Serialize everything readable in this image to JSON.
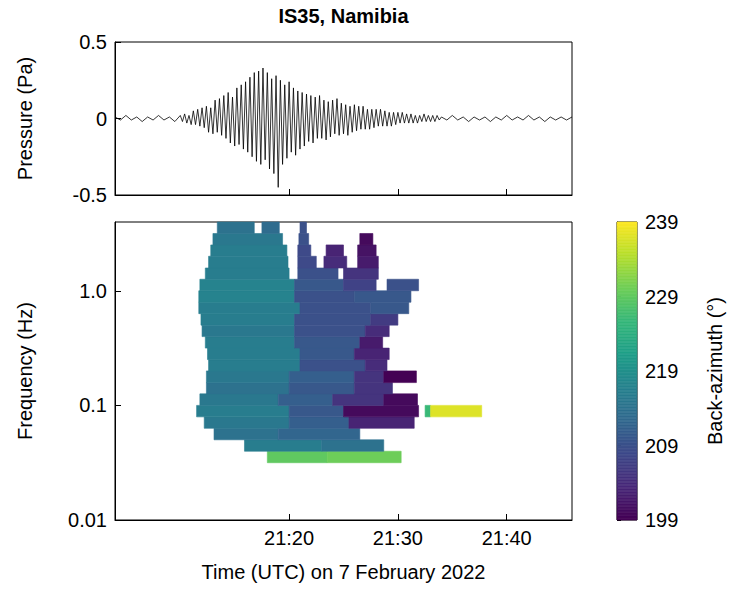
{
  "chart_data": [
    {
      "type": "line",
      "title": "IS35, Namibia",
      "ylabel": "Pressure (Pa)",
      "x": [
        4,
        4.5,
        5,
        5.5,
        6,
        6.5,
        7,
        7.5,
        8,
        8.5,
        9,
        9.5,
        10,
        10.2,
        10.4,
        10.6,
        10.8,
        11,
        11.2,
        11.4,
        11.6,
        11.8,
        12,
        12.2,
        12.4,
        12.6,
        12.8,
        13,
        13.2,
        13.4,
        13.6,
        13.8,
        14,
        14.2,
        14.4,
        14.6,
        14.8,
        15,
        15.2,
        15.4,
        15.6,
        15.8,
        16,
        16.2,
        16.4,
        16.6,
        16.8,
        17,
        17.2,
        17.4,
        17.6,
        17.8,
        18,
        18.2,
        18.4,
        18.6,
        18.8,
        19,
        19.2,
        19.4,
        19.6,
        19.8,
        20,
        20.2,
        20.4,
        20.6,
        20.8,
        21,
        21.2,
        21.4,
        21.6,
        21.8,
        22,
        22.2,
        22.4,
        22.6,
        22.8,
        23,
        23.2,
        23.4,
        23.6,
        23.8,
        24,
        24.2,
        24.4,
        24.6,
        24.8,
        25,
        25.2,
        25.4,
        25.6,
        25.8,
        26,
        26.2,
        26.4,
        26.6,
        26.8,
        27,
        27.2,
        27.4,
        27.6,
        27.8,
        28,
        28.2,
        28.4,
        28.6,
        28.8,
        29,
        29.2,
        29.4,
        29.6,
        29.8,
        30,
        30.2,
        30.4,
        30.6,
        30.8,
        31,
        31.2,
        31.4,
        31.6,
        31.8,
        32,
        32.2,
        32.4,
        32.6,
        32.8,
        33,
        33.2,
        33.4,
        33.6,
        33.8,
        34,
        34.5,
        35,
        35.5,
        36,
        36.5,
        37,
        37.5,
        38,
        38.5,
        39,
        39.5,
        40,
        40.5,
        41,
        41.5,
        42,
        42.5,
        43,
        43.5,
        44,
        44.5,
        45,
        45.5,
        46
      ],
      "values": [
        0.01,
        -0.01,
        0.02,
        -0.01,
        0.01,
        -0.02,
        0.01,
        -0.01,
        0.02,
        -0.01,
        0.01,
        -0.02,
        0.02,
        -0.02,
        0.03,
        -0.03,
        0.02,
        -0.04,
        0.05,
        -0.04,
        0.06,
        -0.05,
        0.07,
        -0.06,
        0.08,
        -0.09,
        0.07,
        -0.1,
        0.12,
        -0.09,
        0.13,
        -0.11,
        0.15,
        -0.13,
        0.17,
        -0.16,
        0.14,
        -0.18,
        0.2,
        -0.17,
        0.22,
        -0.2,
        0.24,
        -0.22,
        0.27,
        -0.25,
        0.3,
        -0.28,
        0.31,
        -0.3,
        0.33,
        -0.27,
        0.3,
        -0.33,
        0.26,
        -0.36,
        0.28,
        -0.45,
        0.25,
        -0.3,
        0.22,
        -0.26,
        0.24,
        -0.22,
        0.2,
        -0.24,
        0.18,
        -0.2,
        0.17,
        -0.18,
        0.16,
        -0.15,
        0.15,
        -0.16,
        0.14,
        -0.13,
        0.15,
        -0.13,
        0.12,
        -0.14,
        0.11,
        -0.12,
        0.12,
        -0.1,
        0.13,
        -0.11,
        0.1,
        -0.1,
        0.09,
        -0.11,
        0.08,
        -0.09,
        0.09,
        -0.08,
        0.08,
        -0.07,
        0.08,
        -0.07,
        0.06,
        -0.07,
        0.06,
        -0.06,
        0.06,
        -0.05,
        0.06,
        -0.05,
        0.05,
        -0.05,
        0.04,
        -0.05,
        0.04,
        -0.04,
        0.04,
        -0.03,
        0.04,
        -0.03,
        0.03,
        -0.03,
        0.03,
        -0.03,
        0.02,
        -0.03,
        0.02,
        -0.02,
        0.03,
        -0.02,
        0.02,
        -0.02,
        0.02,
        -0.02,
        0.02,
        -0.01,
        0.01,
        -0.01,
        0.02,
        -0.01,
        0.01,
        -0.02,
        0.01,
        -0.01,
        0.01,
        -0.02,
        0.01,
        -0.01,
        0.02,
        -0.01,
        0.01,
        -0.01,
        0.02,
        -0.01,
        0.01,
        -0.02,
        0.01,
        -0.01,
        0.01,
        -0.01,
        0.01
      ],
      "color": "#000000",
      "xlim": [
        4,
        46
      ],
      "xticks": [
        {
          "value": 20,
          "label": "21:20"
        },
        {
          "value": 30,
          "label": "21:30"
        },
        {
          "value": 40,
          "label": "21:40"
        }
      ],
      "ylim": [
        -0.5,
        0.5
      ],
      "yticks": [
        -0.5,
        0,
        0.5
      ],
      "grid": false,
      "tick_labels": "y"
    },
    {
      "type": "heatmap",
      "xlabel": "Time (UTC) on 7 February 2022",
      "ylabel": "Frequency (Hz)",
      "xlim": [
        4,
        46
      ],
      "xticks": [
        {
          "value": 20,
          "label": "21:20"
        },
        {
          "value": 30,
          "label": "21:30"
        },
        {
          "value": 40,
          "label": "21:40"
        }
      ],
      "ylim": [
        0.01,
        3.98
      ],
      "yticks": [
        0.01,
        0.1,
        {
          "value": 1,
          "label": "1.0"
        }
      ],
      "log": "y",
      "grid": false,
      "cells": {
        "freq_edges": [
          0.0316,
          0.0398,
          0.0501,
          0.0631,
          0.0794,
          0.1,
          0.126,
          0.158,
          0.2,
          0.251,
          0.316,
          0.398,
          0.501,
          0.631,
          0.794,
          1,
          1.26,
          1.58,
          2,
          2.51,
          3.16,
          3.98
        ],
        "rows": [
          [
            [
              18,
              23.5,
              229
            ],
            [
              23.5,
              30.3,
              230
            ]
          ],
          [
            [
              15.9,
              23,
              216
            ],
            [
              23,
              28.7,
              214
            ]
          ],
          [
            [
              13.1,
              19,
              214
            ],
            [
              19,
              26.5,
              212
            ]
          ],
          [
            [
              12.2,
              20,
              215
            ],
            [
              20,
              25.5,
              211
            ],
            [
              25.5,
              31.5,
              203
            ]
          ],
          [
            [
              11.5,
              20,
              216
            ],
            [
              20,
              25,
              210
            ],
            [
              25,
              31.9,
              200
            ],
            [
              32.5,
              33,
              226
            ],
            [
              33,
              37.7,
              237
            ]
          ],
          [
            [
              11.8,
              19,
              215
            ],
            [
              19,
              24,
              211
            ],
            [
              24,
              28.7,
              205
            ],
            [
              28.7,
              31.8,
              200
            ]
          ],
          [
            [
              12.4,
              20,
              214
            ],
            [
              20,
              26,
              210
            ],
            [
              26,
              29.5,
              205
            ]
          ],
          [
            [
              12.4,
              20,
              215
            ],
            [
              20,
              26,
              211
            ],
            [
              26,
              28.7,
              205
            ],
            [
              28.7,
              31.7,
              199
            ]
          ],
          [
            [
              12.6,
              21,
              216
            ],
            [
              21,
              27,
              209
            ],
            [
              27,
              29,
              204
            ]
          ],
          [
            [
              12.5,
              21,
              216
            ],
            [
              21,
              26,
              210
            ],
            [
              26,
              29.2,
              203
            ]
          ],
          [
            [
              12.3,
              20.5,
              216
            ],
            [
              20.5,
              26.5,
              210
            ],
            [
              26.5,
              28.6,
              202
            ]
          ],
          [
            [
              12,
              20.5,
              215
            ],
            [
              20.5,
              27,
              209
            ],
            [
              27,
              29.2,
              204
            ]
          ],
          [
            [
              11.9,
              20.5,
              216
            ],
            [
              20.5,
              27.5,
              209
            ],
            [
              27.5,
              30,
              206
            ]
          ],
          [
            [
              11.7,
              21,
              216
            ],
            [
              21,
              27.5,
              209
            ],
            [
              27.5,
              31,
              210
            ]
          ],
          [
            [
              11.7,
              20.5,
              217
            ],
            [
              20.5,
              26,
              209
            ],
            [
              26,
              31.2,
              210
            ]
          ],
          [
            [
              11.8,
              20.5,
              217
            ],
            [
              20.5,
              25,
              210
            ],
            [
              25,
              28,
              207
            ],
            [
              29,
              31.9,
              209
            ]
          ],
          [
            [
              12.3,
              20,
              216
            ],
            [
              20.8,
              24.5,
              209
            ],
            [
              25,
              28.2,
              205
            ]
          ],
          [
            [
              12.6,
              19.9,
              216
            ],
            [
              20.8,
              22.5,
              208
            ],
            [
              23.2,
              25.3,
              204
            ],
            [
              26.3,
              28.2,
              202
            ]
          ],
          [
            [
              12.8,
              19.8,
              216
            ],
            [
              20.8,
              22,
              208
            ],
            [
              23.4,
              25,
              203
            ],
            [
              26.3,
              28,
              201
            ]
          ],
          [
            [
              13,
              19.4,
              215
            ],
            [
              20.9,
              21.8,
              209
            ],
            [
              26.5,
              27.7,
              200
            ]
          ],
          [
            [
              13.4,
              16.8,
              214
            ],
            [
              17.5,
              19.1,
              213
            ],
            [
              21,
              21.6,
              209
            ]
          ]
        ]
      },
      "colorbar": {
        "label": "Back-azimuth (°)",
        "lim": [
          199,
          239
        ],
        "ticks": [
          199,
          209,
          219,
          229,
          239
        ]
      }
    }
  ]
}
